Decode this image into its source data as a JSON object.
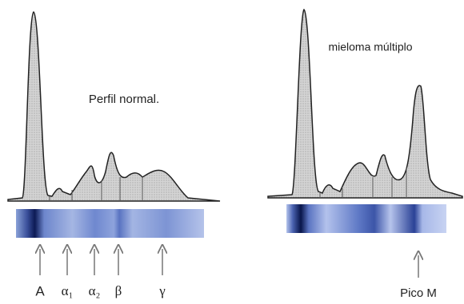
{
  "left_panel": {
    "title": "Perfil normal.",
    "labels": [
      "A",
      "α₁",
      "α₂",
      "β",
      "γ"
    ]
  },
  "right_panel": {
    "title": "mieloma múltiplo",
    "label": "Pico M"
  }
}
